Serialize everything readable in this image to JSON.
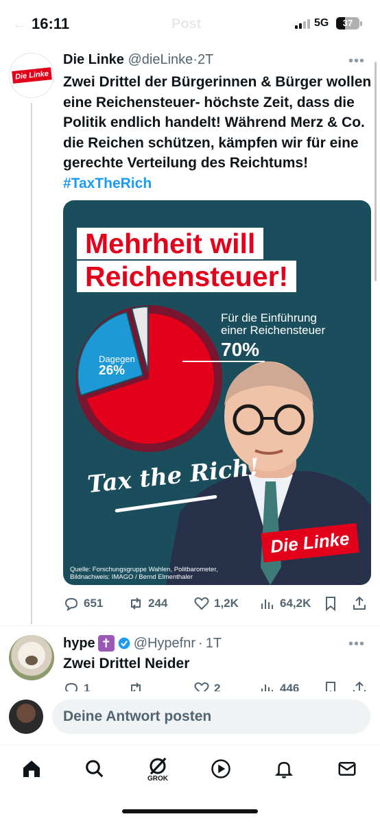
{
  "status_bar": {
    "time": "16:11",
    "ghost_title": "Post",
    "ghost_back": "←",
    "network": "5G",
    "battery": "37",
    "battery_fraction": 0.37
  },
  "main_tweet": {
    "author": "Die Linke",
    "handle": "@dieLinke",
    "separator": "·",
    "time": "2T",
    "more": "•••",
    "avatar_text": "Die Linke",
    "text": "Zwei Drittel der Bürgerinnen & Bürger wollen eine Reichensteuer- höchste Zeit, dass die Politik endlich handelt! Während Merz & Co. die Reichen schützen, kämpfen wir für eine gerechte Verteilung des Reichtums! ",
    "hashtag": "#TaxTheRich",
    "media": {
      "headline_line1": "Mehrheit will",
      "headline_line2": "Reichensteuer!",
      "pro_label_line1": "Für die Einführung",
      "pro_label_line2": "einer Reichensteuer",
      "pro_pct": "70%",
      "con_label": "Dagegen",
      "con_pct": "26%",
      "slogan": "Tax the Rich!",
      "source_line1": "Quelle: Forschungsgruppe Wahlen, Politbarometer,",
      "source_line2": "Bildnachweis: IMAGO / Bernd Elmenthaler",
      "brand": "Die Linke",
      "colors": {
        "background": "#1b4e5c",
        "pro": "#e3001b",
        "con": "#1d9ad6",
        "other": "#e8e8e8",
        "ring": "#7a1530"
      },
      "pie_values": [
        70,
        26,
        4
      ]
    },
    "actions": {
      "replies": "651",
      "reposts": "244",
      "likes": "1,2K",
      "views": "64,2K"
    }
  },
  "reply_tweet": {
    "author": "hype",
    "badge": "✝",
    "handle": "@Hypefnr",
    "separator": "·",
    "time": "1T",
    "more": "•••",
    "text": "Zwei Drittel Neider",
    "actions": {
      "replies": "1",
      "reposts": "",
      "likes": "2",
      "views": "446"
    }
  },
  "composer": {
    "placeholder": "Deine Antwort posten"
  },
  "nav": {
    "grok_label": "GROK"
  }
}
